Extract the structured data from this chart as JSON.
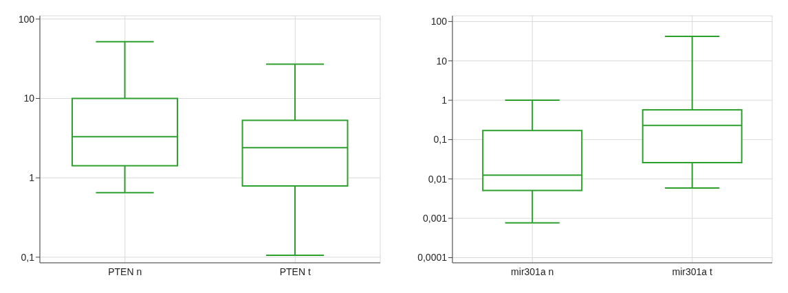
{
  "chart_data": [
    {
      "type": "box",
      "categories": [
        "PTEN n",
        "PTEN t"
      ],
      "color": "#2ca02c",
      "log": "y",
      "grid": true,
      "ylim": [
        0.085,
        110
      ],
      "yticks": [
        {
          "value": 0.1,
          "label": "0,1"
        },
        1,
        10,
        100
      ],
      "boxes": [
        {
          "low": 0.65,
          "q1": 1.42,
          "median": 3.3,
          "q3": 10,
          "high": 52
        },
        {
          "low": 0.106,
          "q1": 0.79,
          "median": 2.4,
          "q3": 5.3,
          "high": 27
        }
      ]
    },
    {
      "type": "box",
      "categories": [
        "mir301a n",
        "mir301a t"
      ],
      "color": "#2ca02c",
      "log": "y",
      "grid": true,
      "ylim": [
        7.4e-05,
        140
      ],
      "yticks": [
        {
          "value": 0.0001,
          "label": "0,0001"
        },
        {
          "value": 0.001,
          "label": "0,001"
        },
        {
          "value": 0.01,
          "label": "0,01"
        },
        {
          "value": 0.1,
          "label": "0,1"
        },
        1,
        10,
        100
      ],
      "boxes": [
        {
          "low": 0.00077,
          "q1": 0.0051,
          "median": 0.0125,
          "q3": 0.17,
          "high": 1
        },
        {
          "low": 0.0059,
          "q1": 0.026,
          "median": 0.23,
          "q3": 0.57,
          "high": 42
        }
      ]
    }
  ]
}
